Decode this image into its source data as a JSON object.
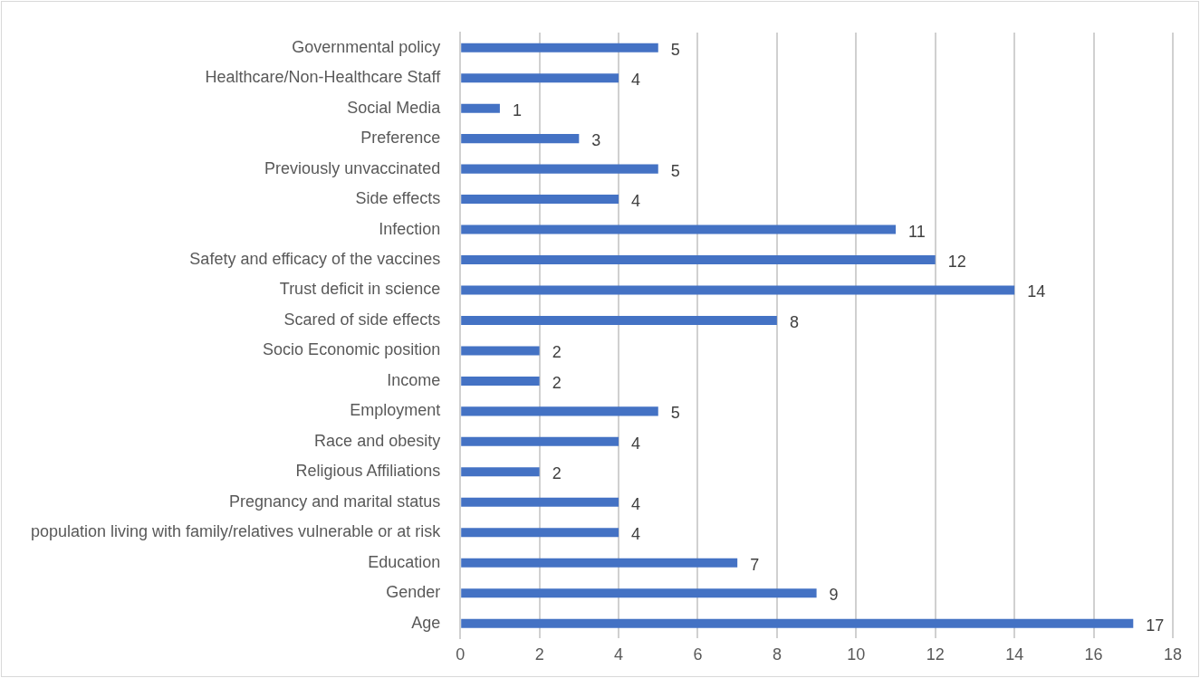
{
  "chart_data": {
    "type": "bar",
    "orientation": "horizontal",
    "categories": [
      "Governmental policy",
      "Healthcare/Non-Healthcare Staff",
      "Social Media",
      "Preference",
      "Previously unvaccinated",
      "Side effects",
      "Infection",
      "Safety and efficacy of the vaccines",
      "Trust deficit in science",
      "Scared of side effects",
      "Socio Economic position",
      "Income",
      "Employment",
      "Race and obesity",
      "Religious Affiliations",
      "Pregnancy and marital status",
      "population living with family/relatives vulnerable or at risk",
      "Education",
      "Gender",
      "Age"
    ],
    "values": [
      5,
      4,
      1,
      3,
      5,
      4,
      11,
      12,
      14,
      8,
      2,
      2,
      5,
      4,
      2,
      4,
      4,
      7,
      9,
      17
    ],
    "color": "#4472c4",
    "xlim": [
      0,
      18
    ],
    "xticks": [
      0,
      2,
      4,
      6,
      8,
      10,
      12,
      14,
      16,
      18
    ],
    "grid": "x",
    "legend": false,
    "data_labels": true
  }
}
